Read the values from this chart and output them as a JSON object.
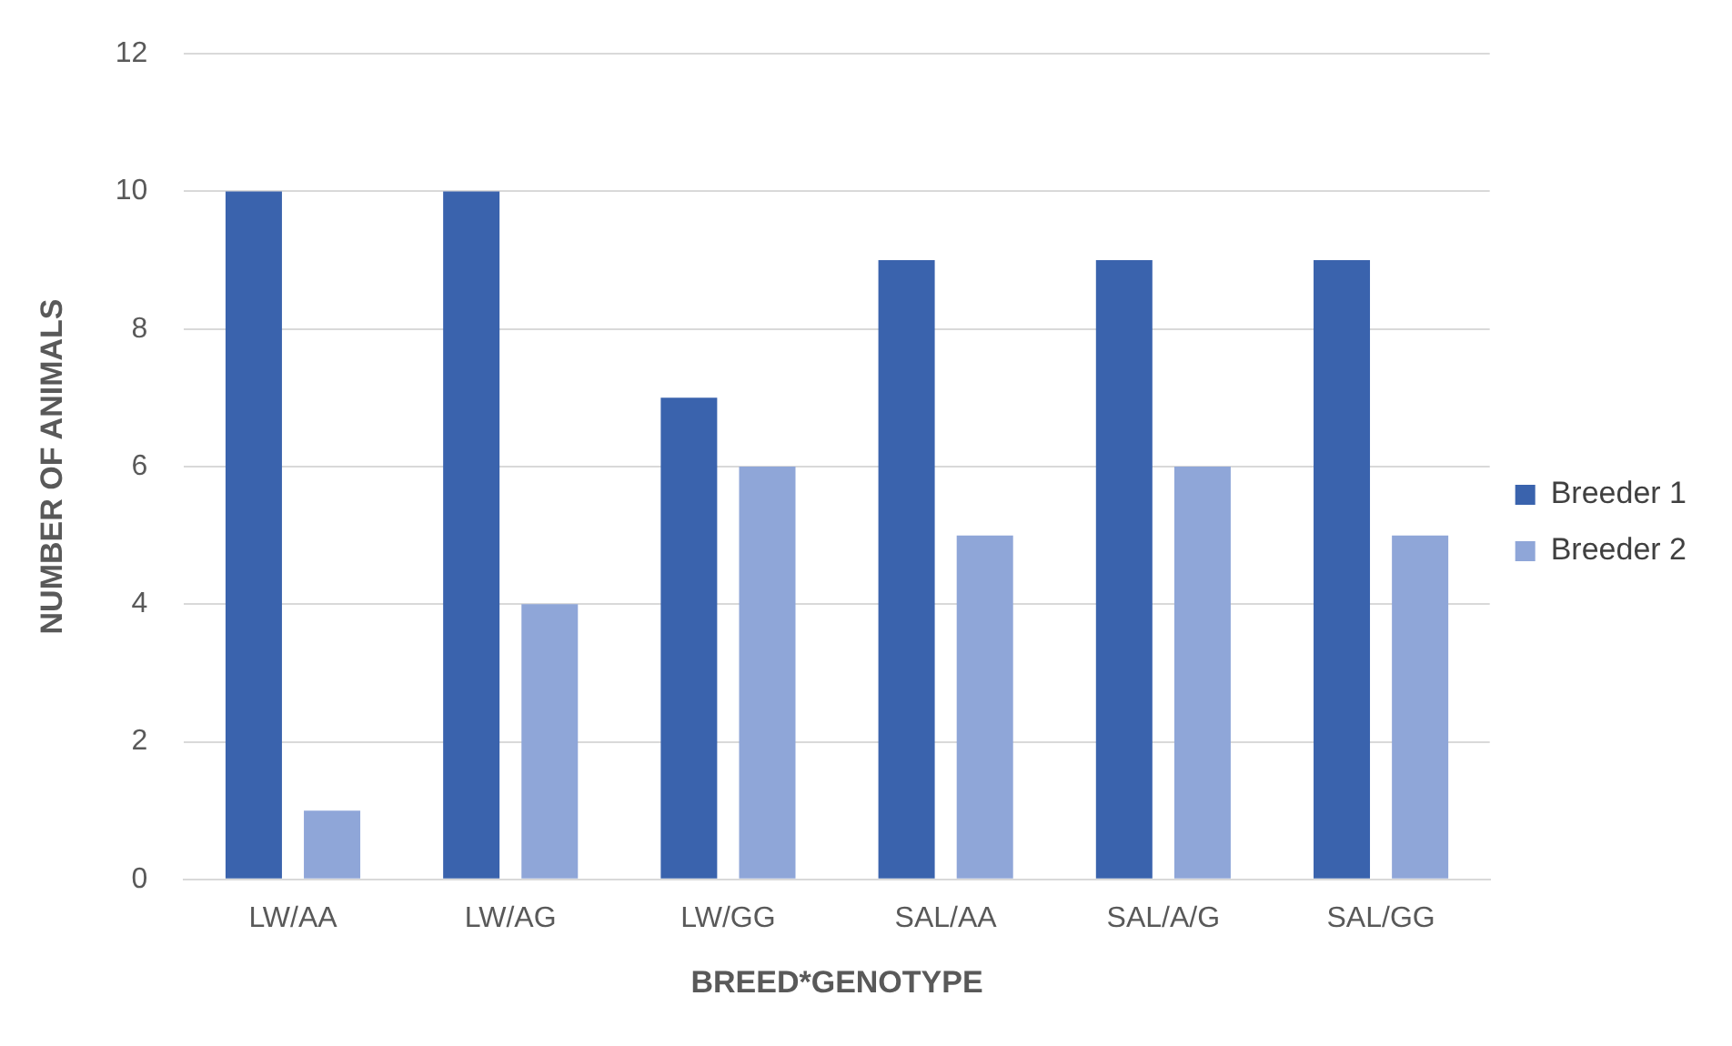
{
  "chart_data": {
    "type": "bar",
    "xlabel": "BREED*GENOTYPE",
    "ylabel": "NUMBER OF ANIMALS",
    "categories": [
      "LW/AA",
      "LW/AG",
      "LW/GG",
      "SAL/AA",
      "SAL/A/G",
      "SAL/GG"
    ],
    "series": [
      {
        "name": "Breeder 1",
        "color": "#3a63ad",
        "values": [
          10,
          10,
          7,
          9,
          9,
          9
        ]
      },
      {
        "name": "Breeder 2",
        "color": "#8fa6d8",
        "values": [
          1,
          4,
          6,
          5,
          6,
          5
        ]
      }
    ],
    "ylim": [
      0,
      12
    ],
    "yticks": [
      0,
      2,
      4,
      6,
      8,
      10,
      12
    ],
    "grid": "y",
    "legend": "right"
  }
}
